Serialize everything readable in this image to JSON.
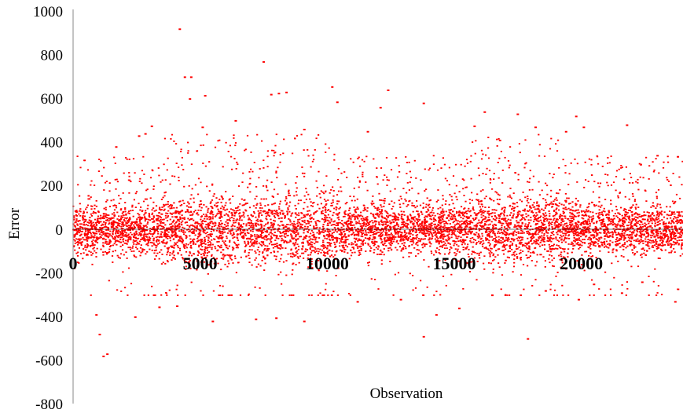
{
  "chart_data": {
    "type": "scatter",
    "xlabel": "Observation",
    "ylabel": "Error",
    "xlim": [
      0,
      24000
    ],
    "ylim": [
      -800,
      1000
    ],
    "xticks": [
      0,
      5000,
      10000,
      15000,
      20000
    ],
    "yticks": [
      1000,
      800,
      600,
      400,
      200,
      0,
      -200,
      -400,
      -600,
      -800
    ],
    "xtick_labels": [
      "0",
      "5000",
      "10000",
      "15000",
      "20000"
    ],
    "ytick_labels": [
      "1000",
      "800",
      "600",
      "400",
      "200",
      "0",
      "-200",
      "-400",
      "-600",
      "-800"
    ],
    "grid": false,
    "marker_color": "#ff0000",
    "series": [
      {
        "points": [
          [
            4200,
            920
          ],
          [
            7500,
            770
          ],
          [
            4400,
            700
          ],
          [
            4650,
            700
          ],
          [
            10200,
            655
          ],
          [
            12400,
            640
          ],
          [
            8100,
            625
          ],
          [
            8400,
            630
          ],
          [
            5200,
            615
          ],
          [
            4600,
            600
          ],
          [
            7800,
            620
          ],
          [
            10400,
            585
          ],
          [
            13800,
            580
          ],
          [
            12100,
            560
          ],
          [
            16200,
            540
          ],
          [
            17500,
            530
          ],
          [
            19800,
            520
          ],
          [
            6400,
            500
          ],
          [
            2600,
            430
          ],
          [
            2850,
            440
          ],
          [
            3100,
            475
          ],
          [
            5100,
            470
          ],
          [
            9100,
            460
          ],
          [
            11600,
            450
          ],
          [
            15800,
            475
          ],
          [
            18200,
            470
          ],
          [
            20100,
            470
          ],
          [
            21800,
            480
          ],
          [
            16800,
            410
          ],
          [
            19400,
            450
          ],
          [
            1700,
            380
          ],
          [
            23000,
            340
          ],
          [
            23800,
            335
          ],
          [
            1200,
            -580
          ],
          [
            1350,
            -570
          ],
          [
            1050,
            -480
          ],
          [
            920,
            -390
          ],
          [
            2450,
            -400
          ],
          [
            7200,
            -410
          ],
          [
            8000,
            -405
          ],
          [
            9100,
            -420
          ],
          [
            5500,
            -420
          ],
          [
            4100,
            -350
          ],
          [
            14300,
            -390
          ],
          [
            13800,
            -490
          ],
          [
            17900,
            -500
          ],
          [
            15200,
            -360
          ],
          [
            19900,
            -320
          ],
          [
            21600,
            -290
          ],
          [
            23700,
            -330
          ],
          [
            3400,
            -355
          ],
          [
            11200,
            -330
          ],
          [
            12900,
            -320
          ],
          [
            16500,
            -300
          ],
          [
            18600,
            -280
          ],
          [
            20500,
            -250
          ],
          [
            22400,
            -240
          ]
        ]
      }
    ]
  }
}
